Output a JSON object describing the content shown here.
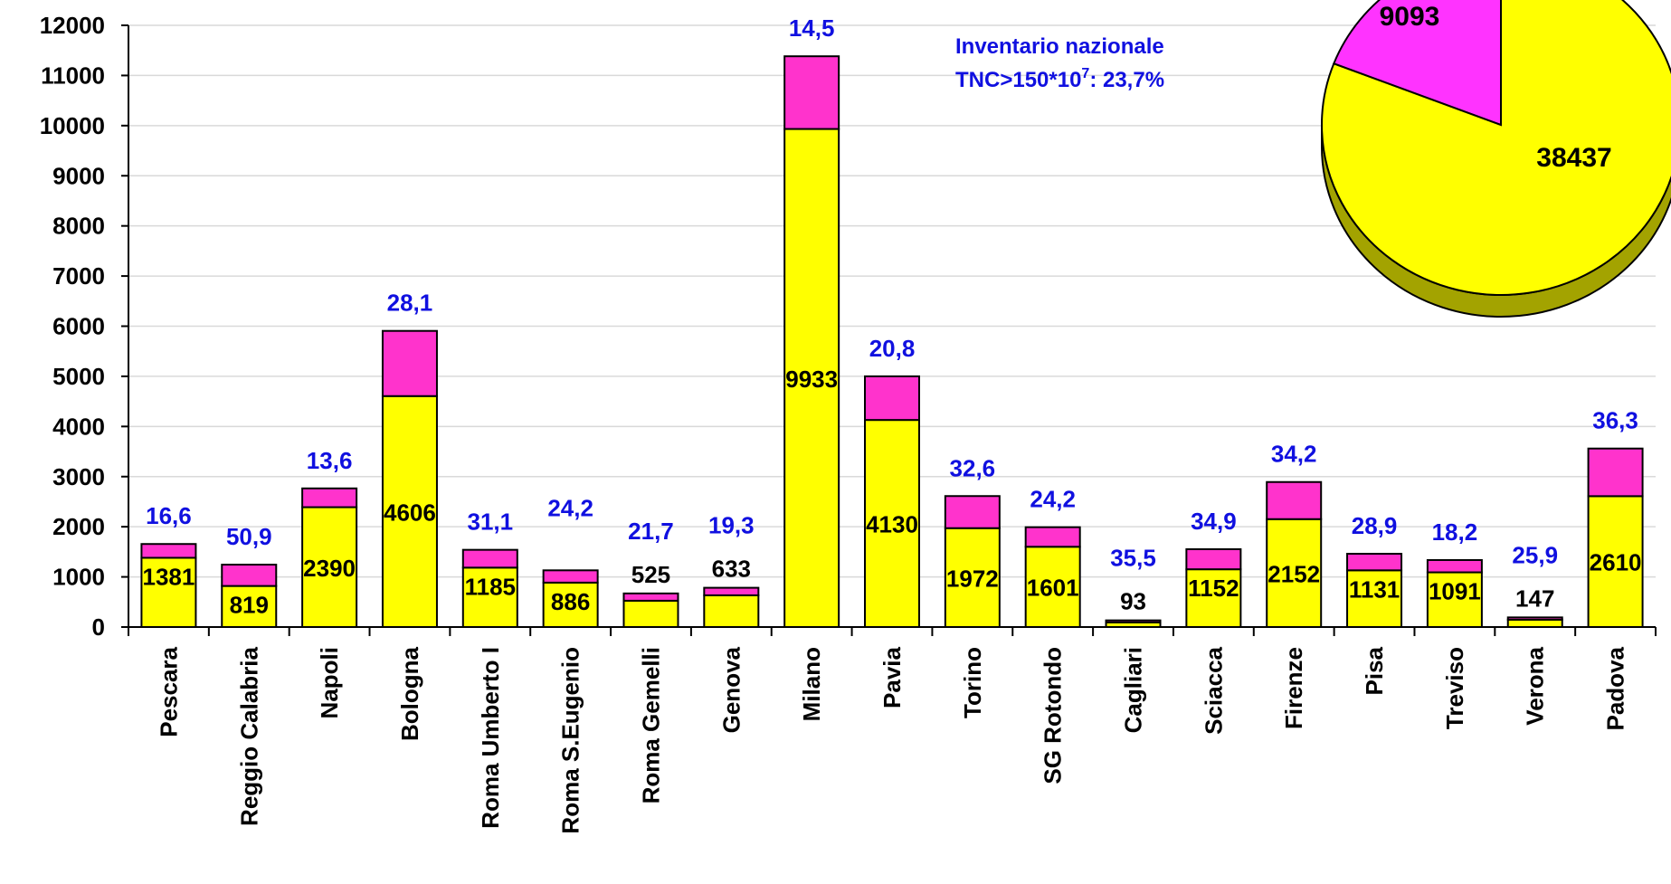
{
  "chart_data": [
    {
      "type": "bar",
      "stacked": true,
      "categories": [
        "Pescara",
        "Reggio Calabria",
        "Napoli",
        "Bologna",
        "Roma Umberto I",
        "Roma S.Eugenio",
        "Roma Gemelli",
        "Genova",
        "Milano",
        "Pavia",
        "Torino",
        "SG Rotondo",
        "Cagliari",
        "Sciacca",
        "Firenze",
        "Pisa",
        "Treviso",
        "Verona",
        "Padova"
      ],
      "series": [
        {
          "color": "#ffff00",
          "values": [
            1381,
            819,
            2390,
            4606,
            1185,
            886,
            525,
            633,
            9933,
            4130,
            1972,
            1601,
            93,
            1152,
            2152,
            1131,
            1091,
            147,
            2610
          ]
        },
        {
          "color": "#ff33cc",
          "values": [
            275,
            425,
            375,
            1300,
            355,
            245,
            145,
            150,
            1450,
            870,
            640,
            390,
            40,
            400,
            740,
            330,
            245,
            45,
            950
          ]
        }
      ],
      "segment_labels": [
        "1381",
        "819",
        "2390",
        "4606",
        "1185",
        "886",
        "525",
        "633",
        "9933",
        "4130",
        "1972",
        "1601",
        "93",
        "1152",
        "2152",
        "1131",
        "1091",
        "147",
        "2610"
      ],
      "percent_labels": [
        "16,6",
        "50,9",
        "13,6",
        "28,1",
        "31,1",
        "24,2",
        "21,7",
        "19,3",
        "14,5",
        "20,8",
        "32,6",
        "24,2",
        "35,5",
        "34,9",
        "34,2",
        "28,9",
        "18,2",
        "25,9",
        "36,3"
      ],
      "ylim": [
        0,
        12000
      ],
      "yticks": [
        0,
        1000,
        2000,
        3000,
        4000,
        5000,
        6000,
        7000,
        8000,
        9000,
        10000,
        11000,
        12000
      ],
      "ytick_labels": [
        "0",
        "1000",
        "2000",
        "3000",
        "4000",
        "5000",
        "6000",
        "7000",
        "8000",
        "9000",
        "10000",
        "11000",
        "12000"
      ],
      "grid": true,
      "annotation": {
        "line1": "Inventario nazionale",
        "line2_pre": "TNC>150*10",
        "line2_sup": "7",
        "line2_post": ": 23,7%"
      }
    },
    {
      "type": "pie",
      "slices": [
        {
          "label": "9093",
          "value": 9093,
          "color": "#ff33ff"
        },
        {
          "label": "38437",
          "value": 38437,
          "color": "#ffff00"
        }
      ]
    }
  ],
  "colors": {
    "low": "#ffff00",
    "high": "#ff33cc",
    "pie_high": "#ff33ff",
    "pie_low": "#ffff00",
    "percent_text": "#1010e0"
  }
}
